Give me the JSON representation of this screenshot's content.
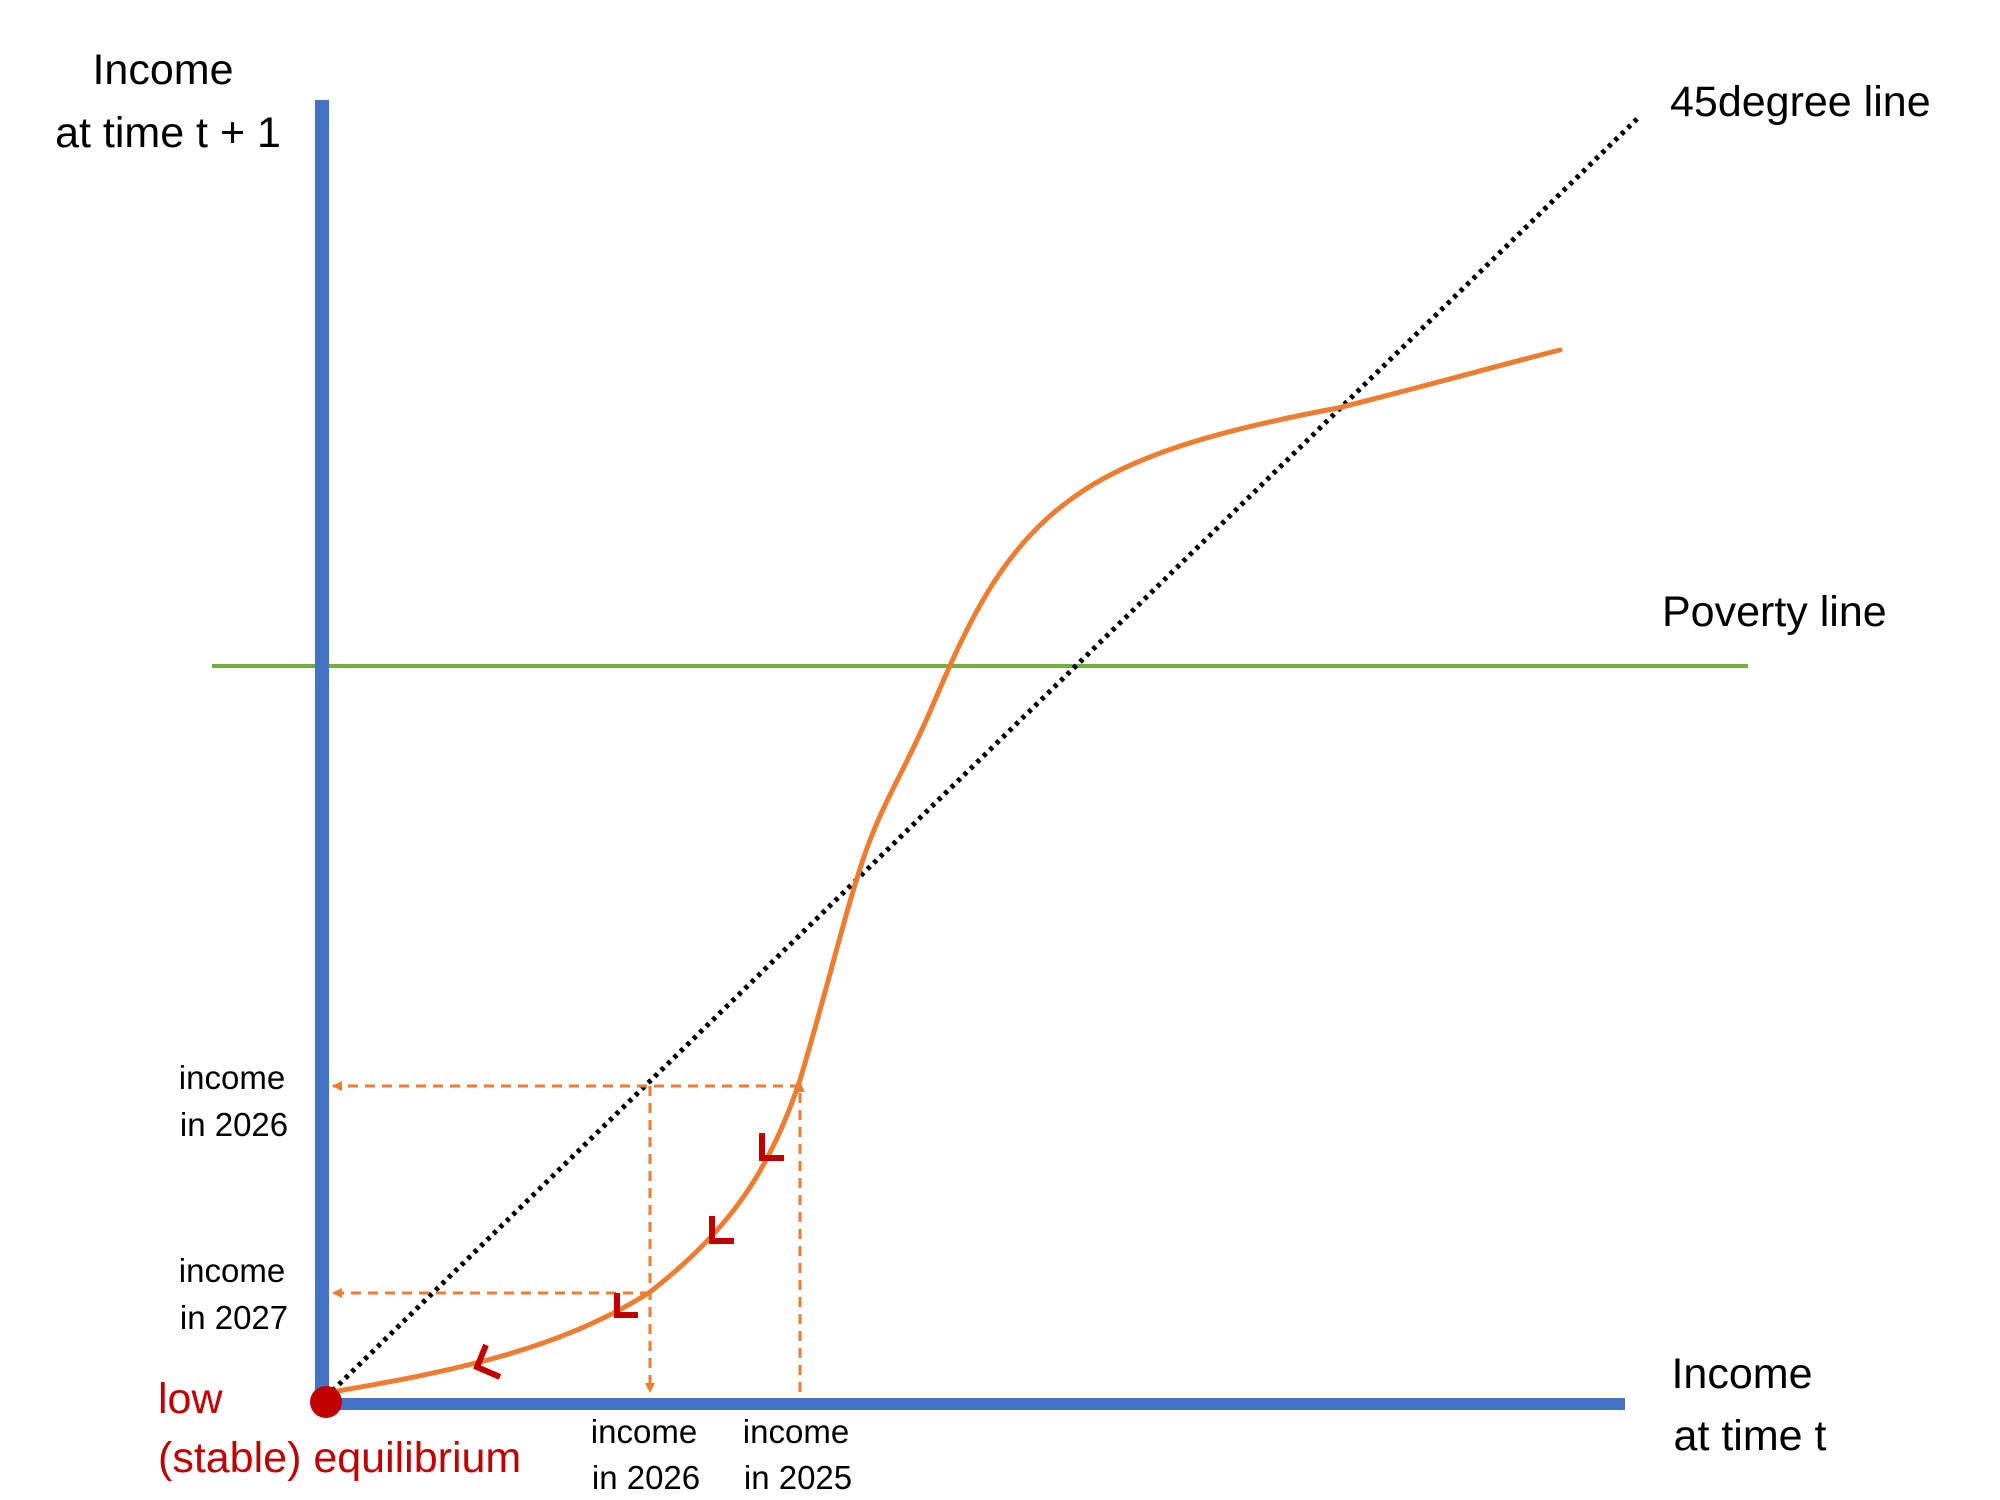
{
  "labels": {
    "y_axis_line1": "Income",
    "y_axis_line2": "at time t + 1",
    "x_axis_line1": "Income",
    "x_axis_line2": "at time t",
    "line_45": "45degree line",
    "poverty_line": "Poverty line",
    "equilibrium_line1": "low",
    "equilibrium_line2": "(stable) equilibrium",
    "y_income_2026_line1": "income",
    "y_income_2026_line2": "in 2026",
    "y_income_2027_line1": "income",
    "y_income_2027_line2": "in 2027",
    "x_income_2026_line1": "income",
    "x_income_2026_line2": "in 2026",
    "x_income_2025_line1": "income",
    "x_income_2025_line2": "in 2025"
  },
  "colors": {
    "axis": "#4472C4",
    "curve": "#ED7D31",
    "poverty_line": "#70AD47",
    "line_45": "#000000",
    "equilibrium": "#C00000",
    "direction_marks": "#C00000",
    "text": "#000000"
  },
  "direction_marks": [
    "arrow-mark",
    "arrow-mark",
    "arrow-mark",
    "arrow-mark"
  ]
}
